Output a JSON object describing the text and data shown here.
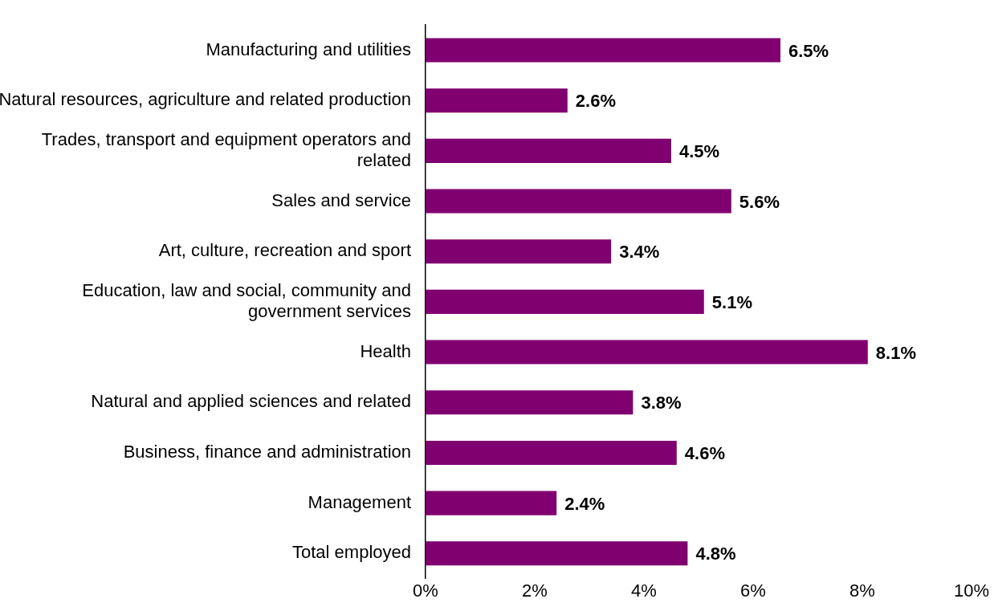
{
  "chart_data": {
    "type": "bar",
    "orientation": "horizontal",
    "categories": [
      "Manufacturing and utilities",
      "Natural resources, agriculture and related production",
      "Trades, transport and equipment operators and related",
      "Sales and service",
      "Art, culture, recreation and sport",
      "Education, law and social, community and government services",
      "Health",
      "Natural and applied sciences and related",
      "Business, finance and administration",
      "Management",
      "Total employed"
    ],
    "values": [
      6.5,
      2.6,
      4.5,
      5.6,
      3.4,
      5.1,
      8.1,
      3.8,
      4.6,
      2.4,
      4.8
    ],
    "value_labels": [
      "6.5%",
      "2.6%",
      "4.5%",
      "5.6%",
      "3.4%",
      "5.1%",
      "8.1%",
      "3.8%",
      "4.6%",
      "2.4%",
      "4.8%"
    ],
    "color": "#800070",
    "xlim": [
      0,
      10
    ],
    "xticks": [
      {
        "value": 0,
        "label": "0%"
      },
      {
        "value": 2,
        "label": "2%"
      },
      {
        "value": 4,
        "label": "4%"
      },
      {
        "value": 6,
        "label": "6%"
      },
      {
        "value": 8,
        "label": "8%"
      },
      {
        "value": 10,
        "label": "10%"
      }
    ],
    "grid": false,
    "legend": false
  }
}
